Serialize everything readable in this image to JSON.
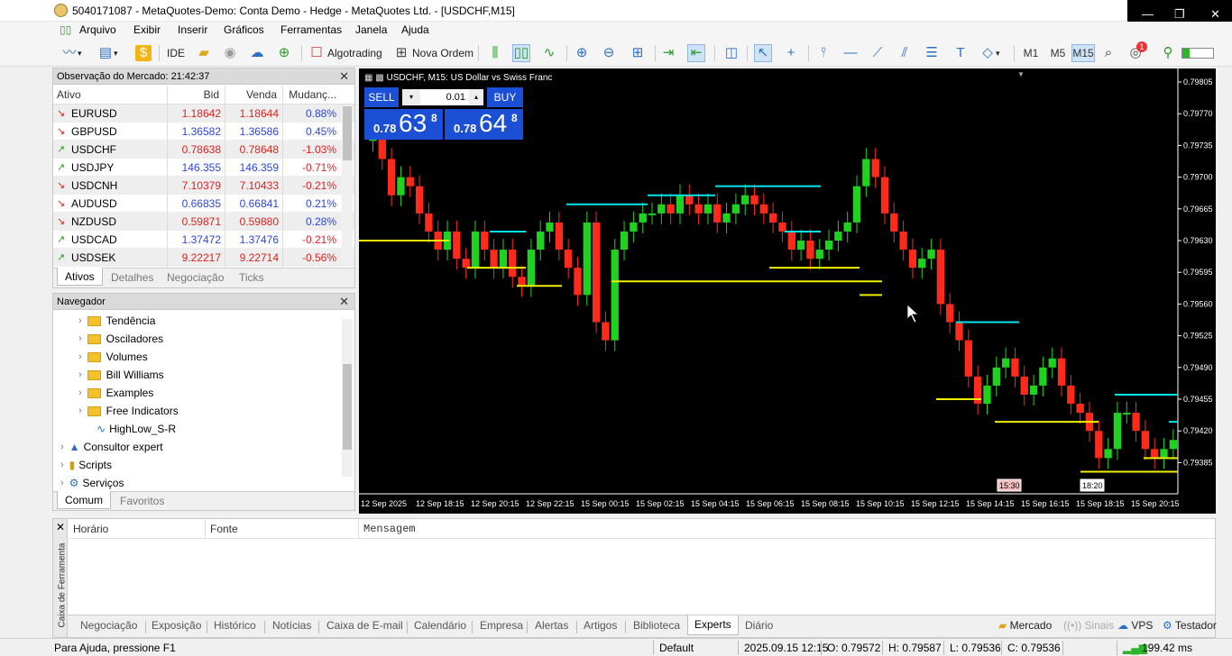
{
  "window": {
    "title": "5040171087 - MetaQuotes-Demo: Conta Demo - Hedge - MetaQuotes Ltd. - [USDCHF,M15]",
    "minimize_glyph": "—",
    "restore_glyph": "❐",
    "close_glyph": "✕"
  },
  "menu": [
    "Arquivo",
    "Exibir",
    "Inserir",
    "Gráficos",
    "Ferramentas",
    "Janela",
    "Ajuda"
  ],
  "toolbar": {
    "ide": "IDE",
    "algotrading": "Algotrading",
    "nova_ordem": "Nova Ordem",
    "timeframes": [
      "M1",
      "M5",
      "M15"
    ],
    "active_timeframe": "M15",
    "notification_count": "1"
  },
  "market_watch": {
    "title": "Observação do Mercado: 21:42:37",
    "columns": [
      "Ativo",
      "Bid",
      "Venda",
      "Mudanç..."
    ],
    "rows": [
      {
        "dir": "down",
        "symbol": "EURUSD",
        "bid": "1.18642",
        "ask": "1.18644",
        "change": "0.88%"
      },
      {
        "dir": "down",
        "symbol": "GBPUSD",
        "bid": "1.36582",
        "ask": "1.36586",
        "change": "0.45%"
      },
      {
        "dir": "up",
        "symbol": "USDCHF",
        "bid": "0.78638",
        "ask": "0.78648",
        "change": "-1.03%"
      },
      {
        "dir": "up",
        "symbol": "USDJPY",
        "bid": "146.355",
        "ask": "146.359",
        "change": "-0.71%"
      },
      {
        "dir": "down",
        "symbol": "USDCNH",
        "bid": "7.10379",
        "ask": "7.10433",
        "change": "-0.21%"
      },
      {
        "dir": "down",
        "symbol": "AUDUSD",
        "bid": "0.66835",
        "ask": "0.66841",
        "change": "0.21%"
      },
      {
        "dir": "down",
        "symbol": "NZDUSD",
        "bid": "0.59871",
        "ask": "0.59880",
        "change": "0.28%"
      },
      {
        "dir": "up",
        "symbol": "USDCAD",
        "bid": "1.37472",
        "ask": "1.37476",
        "change": "-0.21%"
      },
      {
        "dir": "up",
        "symbol": "USDSEK",
        "bid": "9.22217",
        "ask": "9.22714",
        "change": "-0.56%"
      }
    ],
    "tabs": [
      "Ativos",
      "Detalhes",
      "Negociação",
      "Ticks"
    ],
    "active_tab": "Ativos"
  },
  "navigator": {
    "title": "Navegador",
    "items": [
      {
        "label": "Tendência",
        "type": "folder"
      },
      {
        "label": "Osciladores",
        "type": "folder"
      },
      {
        "label": "Volumes",
        "type": "folder"
      },
      {
        "label": "Bill Williams",
        "type": "folder"
      },
      {
        "label": "Examples",
        "type": "folder"
      },
      {
        "label": "Free Indicators",
        "type": "folder"
      },
      {
        "label": "HighLow_S-R",
        "type": "indicator"
      },
      {
        "label": "Consultor expert",
        "type": "expert"
      },
      {
        "label": "Scripts",
        "type": "scripts"
      },
      {
        "label": "Serviços",
        "type": "services"
      }
    ],
    "tabs": [
      "Comum",
      "Favoritos"
    ],
    "active_tab": "Comum"
  },
  "chart": {
    "header": "USDCHF, M15:  US Dollar vs Swiss Franc",
    "trade": {
      "sell_label": "SELL",
      "buy_label": "BUY",
      "volume": "0.01",
      "sell_prefix": "0.78",
      "sell_big": "63",
      "sell_small": "8",
      "buy_prefix": "0.78",
      "buy_big": "64",
      "buy_small": "8"
    },
    "price_labels": [
      "0.79805",
      "0.79770",
      "0.79735",
      "0.79700",
      "0.79665",
      "0.79630",
      "0.79595",
      "0.79560",
      "0.79525",
      "0.79490",
      "0.79455",
      "0.79420",
      "0.79385"
    ],
    "time_labels": [
      "12 Sep 2025",
      "12 Sep 18:15",
      "12 Sep 20:15",
      "12 Sep 22:15",
      "15 Sep 00:15",
      "15 Sep 02:15",
      "15 Sep 04:15",
      "15 Sep 06:15",
      "15 Sep 08:15",
      "15 Sep 10:15",
      "15 Sep 12:15",
      "15 Sep 14:15",
      "15 Sep 16:15",
      "15 Sep 18:15",
      "15 Sep 20:15"
    ],
    "marker_labels": [
      "15:30",
      "18:20"
    ],
    "colors": {
      "bull": "#1fd21f",
      "bear": "#ff2a1a",
      "resistance": "#00e5ee",
      "support": "#f0f000"
    }
  },
  "toolbox": {
    "side_label": "Caixa de Ferramenta",
    "columns": [
      "Horário",
      "Fonte",
      "Mensagem"
    ],
    "tabs": [
      "Negociação",
      "Exposição",
      "Histórico",
      "Notícias",
      "Caixa de E-mail",
      "Calendário",
      "Empresa",
      "Alertas",
      "Artigos",
      "Biblioteca",
      "Experts",
      "Diário"
    ],
    "active_tab": "Experts",
    "right_items": [
      "Mercado",
      "Sinais",
      "VPS",
      "Testador"
    ]
  },
  "status": {
    "help": "Para Ajuda, pressione F1",
    "profile": "Default",
    "datetime": "2025.09.15 12:15",
    "open": "O: 0.79572",
    "high": "H: 0.79587",
    "low": "L: 0.79536",
    "close": "C: 0.79536",
    "ping": "199.42 ms"
  }
}
